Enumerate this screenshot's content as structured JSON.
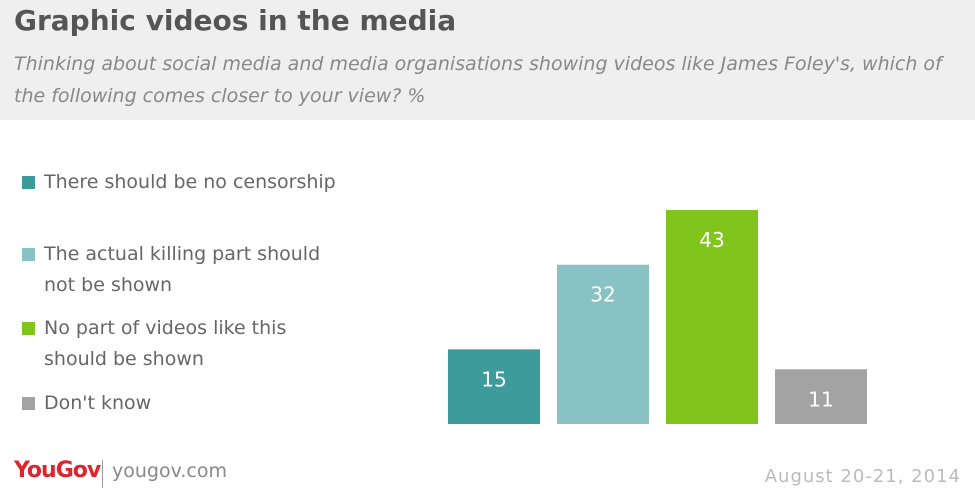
{
  "chart_data": {
    "type": "bar",
    "title": "Graphic videos in the media",
    "subtitle": "Thinking about social media and media organisations showing videos like James Foley's, which of the following comes closer to your view? %",
    "categories": [
      "There should be no censorship",
      "The actual killing part should not be shown",
      "No part of videos like this should be shown",
      "Don't know"
    ],
    "values": [
      15,
      32,
      43,
      11
    ],
    "colors": [
      "#3d9b9b",
      "#89c2c4",
      "#80c41c",
      "#a3a3a3"
    ],
    "logo": "YouGov",
    "source": "yougov.com",
    "date": "August 20-21, 2014"
  }
}
